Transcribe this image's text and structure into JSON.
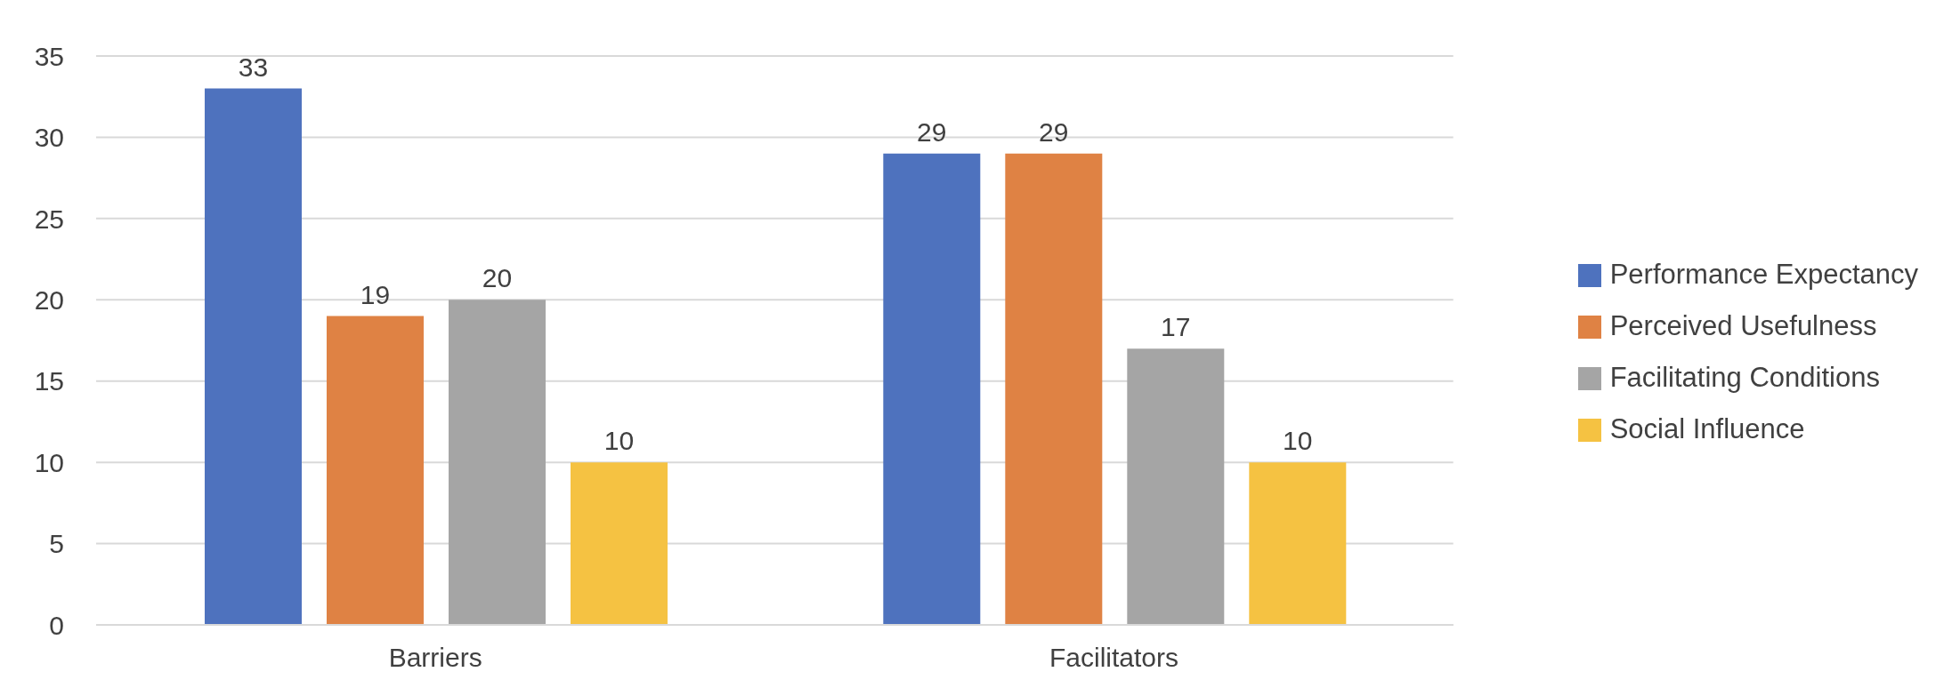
{
  "chart_data": {
    "type": "bar",
    "categories": [
      "Barriers",
      "Facilitators"
    ],
    "series": [
      {
        "name": "Performance Expectancy",
        "color": "#4e72be",
        "values": [
          33,
          29
        ]
      },
      {
        "name": "Perceived Usefulness",
        "color": "#df8244",
        "values": [
          19,
          29
        ]
      },
      {
        "name": "Facilitating Conditions",
        "color": "#a5a5a5",
        "values": [
          20,
          17
        ]
      },
      {
        "name": "Social Influence",
        "color": "#f5c242",
        "values": [
          10,
          10
        ]
      }
    ],
    "ylim": [
      0,
      35
    ],
    "yticks": [
      0,
      5,
      10,
      15,
      20,
      25,
      30,
      35
    ],
    "grid": "y",
    "legend": "right",
    "data_labels": true
  }
}
